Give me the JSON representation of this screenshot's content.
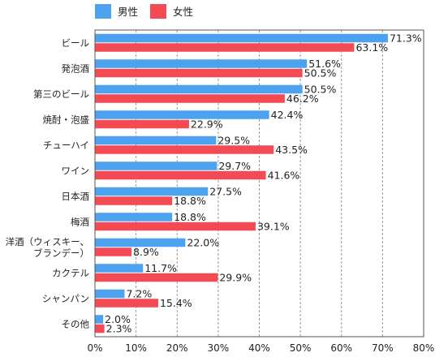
{
  "colors": {
    "male": "#4ca2ee",
    "female": "#f44a54",
    "grid": "#9a9a9a",
    "axis": "#555555"
  },
  "chart_data": {
    "type": "bar",
    "orientation": "horizontal",
    "categories": [
      [
        "ビール"
      ],
      [
        "発泡酒"
      ],
      [
        "第三のビール"
      ],
      [
        "焼酎・泡盛"
      ],
      [
        "チューハイ"
      ],
      [
        "ワイン"
      ],
      [
        "日本酒"
      ],
      [
        "梅酒"
      ],
      [
        "洋酒（ウィスキー、",
        "ブランデー）"
      ],
      [
        "カクテル"
      ],
      [
        "シャンパン"
      ],
      [
        "その他"
      ]
    ],
    "series": [
      {
        "name": "男性",
        "color": "#4ca2ee",
        "values": [
          71.3,
          51.6,
          50.5,
          42.4,
          29.5,
          29.7,
          27.5,
          18.8,
          22.0,
          11.7,
          7.2,
          2.0
        ],
        "labels": [
          "71.3%",
          "51.6%",
          "50.5%",
          "42.4%",
          "29.5%",
          "29.7%",
          "27.5%",
          "18.8%",
          "22.0%",
          "11.7%",
          "7.2%",
          "2.0%"
        ]
      },
      {
        "name": "女性",
        "color": "#f44a54",
        "values": [
          63.1,
          50.5,
          46.2,
          22.9,
          43.5,
          41.6,
          18.8,
          39.1,
          8.9,
          29.9,
          15.4,
          2.3
        ],
        "labels": [
          "63.1%",
          "50.5%",
          "46.2%",
          "22.9%",
          "43.5%",
          "41.6%",
          "18.8%",
          "39.1%",
          "8.9%",
          "29.9%",
          "15.4%",
          "2.3%"
        ]
      }
    ],
    "xlim": [
      0,
      80
    ],
    "xticks": [
      0,
      10,
      20,
      30,
      40,
      50,
      60,
      70,
      80
    ],
    "xtick_labels": [
      "0%",
      "10%",
      "20%",
      "30%",
      "40%",
      "50%",
      "60%",
      "70%",
      "80%"
    ],
    "grid": "vertical dashed",
    "legend": "top-left",
    "title": "",
    "xlabel": "",
    "ylabel": ""
  }
}
